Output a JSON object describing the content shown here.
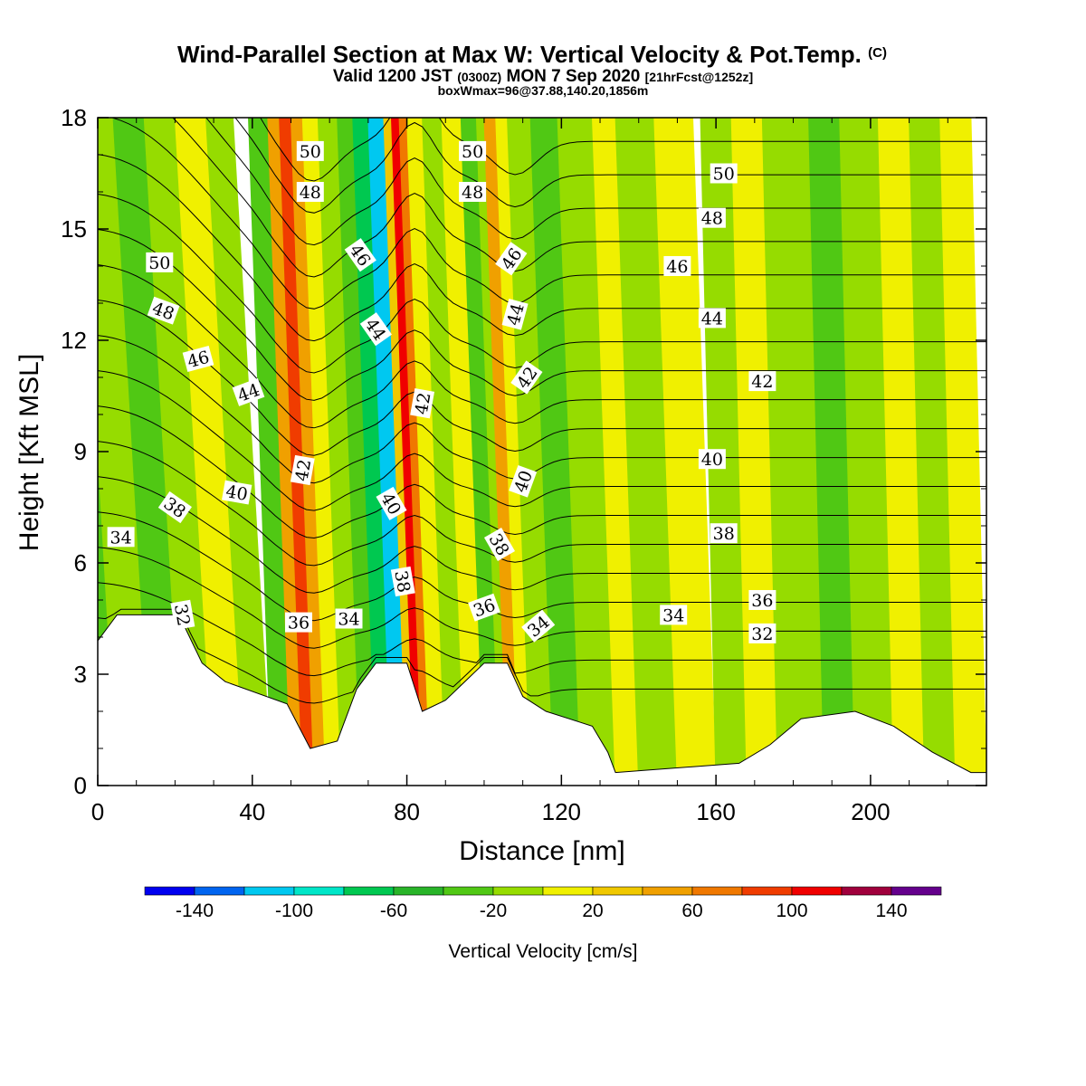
{
  "chart_data": {
    "type": "heatmap",
    "title": "Wind-Parallel Section at Max W: Vertical Velocity & Pot.Temp.",
    "title_mark": "(C)",
    "subtitle_parts": [
      "Valid 1200 JST",
      "(0300Z)",
      "MON 7 Sep 2020",
      "[21hrFcst@1252z]"
    ],
    "subtitle2": "boxWmax=96@37.88,140.20,1856m",
    "xlabel": "Distance [nm]",
    "ylabel": "Height [Kft MSL]",
    "xlim": [
      0,
      230
    ],
    "ylim": [
      0,
      18
    ],
    "x_ticks": [
      0,
      40,
      80,
      120,
      160,
      200
    ],
    "x_tick_labels": [
      "0",
      "40",
      "80",
      "120",
      "160",
      "200"
    ],
    "y_ticks": [
      0,
      3,
      6,
      9,
      12,
      15,
      18
    ],
    "y_tick_labels": [
      "0",
      "3",
      "6",
      "9",
      "12",
      "15",
      "18"
    ],
    "colorbar": {
      "label": "Vertical Velocity [cm/s]",
      "boundaries": [
        -160,
        -140,
        -120,
        -100,
        -80,
        -60,
        -40,
        -20,
        0,
        20,
        40,
        60,
        80,
        100,
        120,
        140,
        160
      ],
      "colors": [
        "#0000f0",
        "#0064f0",
        "#00c8f0",
        "#00e6c8",
        "#00c850",
        "#28b428",
        "#50c814",
        "#96dc00",
        "#f0f000",
        "#f0c800",
        "#f0a000",
        "#f07800",
        "#f03c00",
        "#f00000",
        "#a0003c",
        "#64008c"
      ],
      "tick_values": [
        -140,
        -100,
        -60,
        -20,
        20,
        60,
        100,
        140
      ],
      "tick_labels": [
        "-140",
        "-100",
        "-60",
        "-20",
        "20",
        "60",
        "100",
        "140"
      ]
    },
    "bands": [
      {
        "x0": 0,
        "x1": 5,
        "w": -40
      },
      {
        "x0": 5,
        "x1": 14,
        "w": -20
      },
      {
        "x0": 14,
        "x1": 22,
        "w": -40
      },
      {
        "x0": 22,
        "x1": 30,
        "w": -20
      },
      {
        "x0": 30,
        "x1": 38,
        "w": 10
      },
      {
        "x0": 38,
        "x1": 45,
        "w": -20
      },
      {
        "x0": 45,
        "x1": 50,
        "w": -40
      },
      {
        "x0": 50,
        "x1": 53,
        "w": 50
      },
      {
        "x0": 53,
        "x1": 56,
        "w": 80
      },
      {
        "x0": 56,
        "x1": 59,
        "w": 50
      },
      {
        "x0": 59,
        "x1": 63,
        "w": 10
      },
      {
        "x0": 63,
        "x1": 68,
        "w": -20
      },
      {
        "x0": 68,
        "x1": 72,
        "w": -40
      },
      {
        "x0": 72,
        "x1": 76,
        "w": -70
      },
      {
        "x0": 76,
        "x1": 80,
        "w": -110
      },
      {
        "x0": 80,
        "x1": 82,
        "w": 30
      },
      {
        "x0": 82,
        "x1": 84,
        "w": 110
      },
      {
        "x0": 84,
        "x1": 86,
        "w": 70
      },
      {
        "x0": 86,
        "x1": 90,
        "w": 10
      },
      {
        "x0": 90,
        "x1": 95,
        "w": -20
      },
      {
        "x0": 95,
        "x1": 100,
        "w": 10
      },
      {
        "x0": 100,
        "x1": 104,
        "w": -40
      },
      {
        "x0": 104,
        "x1": 106,
        "w": -20
      },
      {
        "x0": 106,
        "x1": 109,
        "w": 50
      },
      {
        "x0": 109,
        "x1": 112,
        "w": 10
      },
      {
        "x0": 112,
        "x1": 118,
        "w": -20
      },
      {
        "x0": 118,
        "x1": 125,
        "w": -40
      },
      {
        "x0": 125,
        "x1": 134,
        "w": -20
      },
      {
        "x0": 134,
        "x1": 140,
        "w": 10
      },
      {
        "x0": 140,
        "x1": 150,
        "w": -20
      },
      {
        "x0": 150,
        "x1": 160,
        "w": 10
      },
      {
        "x0": 160,
        "x1": 168,
        "w": -20
      },
      {
        "x0": 168,
        "x1": 176,
        "w": 10
      },
      {
        "x0": 176,
        "x1": 188,
        "w": -20
      },
      {
        "x0": 188,
        "x1": 196,
        "w": -40
      },
      {
        "x0": 196,
        "x1": 206,
        "w": -20
      },
      {
        "x0": 206,
        "x1": 214,
        "w": 10
      },
      {
        "x0": 214,
        "x1": 222,
        "w": -20
      },
      {
        "x0": 222,
        "x1": 230,
        "w": 10
      }
    ],
    "terrain": [
      [
        0,
        3.9
      ],
      [
        5,
        4.6
      ],
      [
        21,
        4.6
      ],
      [
        27,
        3.3
      ],
      [
        33,
        2.8
      ],
      [
        49,
        2.2
      ],
      [
        55,
        1.0
      ],
      [
        62,
        1.2
      ],
      [
        67,
        2.6
      ],
      [
        72,
        3.3
      ],
      [
        80,
        3.3
      ],
      [
        84,
        2.0
      ],
      [
        90,
        2.3
      ],
      [
        100,
        3.3
      ],
      [
        106,
        3.3
      ],
      [
        110,
        2.4
      ],
      [
        116,
        2.0
      ],
      [
        122,
        1.8
      ],
      [
        128,
        1.6
      ],
      [
        132,
        0.9
      ],
      [
        134,
        0.35
      ],
      [
        166,
        0.6
      ],
      [
        174,
        1.1
      ],
      [
        182,
        1.8
      ],
      [
        196,
        2.0
      ],
      [
        206,
        1.6
      ],
      [
        216,
        0.9
      ],
      [
        226,
        0.35
      ],
      [
        230,
        0.35
      ]
    ],
    "theta_levels": [
      32,
      33,
      34,
      35,
      36,
      37,
      38,
      39,
      40,
      41,
      42,
      43,
      44,
      45,
      46,
      47,
      48,
      49,
      50
    ],
    "contour_labels": [
      {
        "text": "50",
        "x": 55,
        "y": 17.1,
        "angle": 0
      },
      {
        "text": "48",
        "x": 55,
        "y": 16.0,
        "angle": 0
      },
      {
        "text": "50",
        "x": 97,
        "y": 17.1,
        "angle": 0
      },
      {
        "text": "48",
        "x": 97,
        "y": 16.0,
        "angle": 0
      },
      {
        "text": "50",
        "x": 162,
        "y": 16.5,
        "angle": 0
      },
      {
        "text": "48",
        "x": 159,
        "y": 15.3,
        "angle": 0
      },
      {
        "text": "46",
        "x": 150,
        "y": 14.0,
        "angle": 0
      },
      {
        "text": "44",
        "x": 159,
        "y": 12.6,
        "angle": 0
      },
      {
        "text": "42",
        "x": 172,
        "y": 10.9,
        "angle": 0
      },
      {
        "text": "40",
        "x": 159,
        "y": 8.8,
        "angle": 0
      },
      {
        "text": "38",
        "x": 162,
        "y": 6.8,
        "angle": 0
      },
      {
        "text": "36",
        "x": 172,
        "y": 5.0,
        "angle": 0
      },
      {
        "text": "34",
        "x": 149,
        "y": 4.6,
        "angle": 0
      },
      {
        "text": "32",
        "x": 172,
        "y": 4.1,
        "angle": 0
      },
      {
        "text": "50",
        "x": 16,
        "y": 14.1,
        "angle": 0
      },
      {
        "text": "48",
        "x": 17,
        "y": 12.8,
        "angle": 20
      },
      {
        "text": "46",
        "x": 26,
        "y": 11.5,
        "angle": -15
      },
      {
        "text": "44",
        "x": 39,
        "y": 10.6,
        "angle": -20
      },
      {
        "text": "38",
        "x": 20,
        "y": 7.5,
        "angle": 35
      },
      {
        "text": "40",
        "x": 36,
        "y": 7.9,
        "angle": 10
      },
      {
        "text": "34",
        "x": 6,
        "y": 6.7,
        "angle": 0
      },
      {
        "text": "32",
        "x": 22,
        "y": 4.6,
        "angle": 80
      },
      {
        "text": "46",
        "x": 68,
        "y": 14.3,
        "angle": 55
      },
      {
        "text": "44",
        "x": 72,
        "y": 12.3,
        "angle": 55
      },
      {
        "text": "42",
        "x": 53,
        "y": 8.5,
        "angle": -80
      },
      {
        "text": "40",
        "x": 76,
        "y": 7.6,
        "angle": 60
      },
      {
        "text": "38",
        "x": 79,
        "y": 5.5,
        "angle": 80
      },
      {
        "text": "36",
        "x": 52,
        "y": 4.4,
        "angle": 0
      },
      {
        "text": "34",
        "x": 65,
        "y": 4.5,
        "angle": 0
      },
      {
        "text": "42",
        "x": 84,
        "y": 10.3,
        "angle": -80
      },
      {
        "text": "46",
        "x": 107,
        "y": 14.2,
        "angle": -55
      },
      {
        "text": "44",
        "x": 108,
        "y": 12.7,
        "angle": -75
      },
      {
        "text": "42",
        "x": 111,
        "y": 11.0,
        "angle": -55
      },
      {
        "text": "40",
        "x": 110,
        "y": 8.2,
        "angle": -70
      },
      {
        "text": "38",
        "x": 104,
        "y": 6.5,
        "angle": 60
      },
      {
        "text": "36",
        "x": 100,
        "y": 4.8,
        "angle": -20
      },
      {
        "text": "34",
        "x": 114,
        "y": 4.3,
        "angle": -40
      }
    ]
  }
}
